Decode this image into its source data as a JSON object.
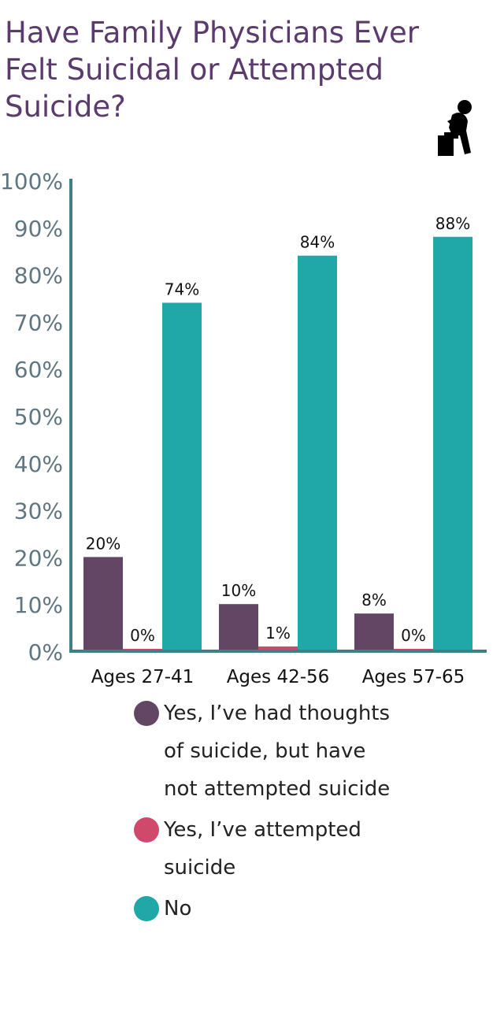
{
  "title": "Have Family Physicians Ever Felt Suicidal or Attempted Suicide?",
  "icon": "person-sitting-head-in-hand-icon",
  "chart_data": {
    "type": "bar",
    "title": "Have Family Physicians Ever Felt Suicidal or Attempted Suicide?",
    "categories": [
      "Ages 27-41",
      "Ages 42-56",
      "Ages 57-65"
    ],
    "series": [
      {
        "name": "Yes, I’ve had thoughts of suicide, but have not attempted suicide",
        "color": "#634663",
        "values": [
          20,
          10,
          8
        ],
        "labels": [
          "20%",
          "10%",
          "8%"
        ]
      },
      {
        "name": "Yes, I’ve attempted suicide",
        "color": "#cf4a6a",
        "values": [
          0,
          1,
          0
        ],
        "labels": [
          "0%",
          "1%",
          "0%"
        ]
      },
      {
        "name": "No",
        "color": "#20a8a8",
        "values": [
          74,
          84,
          88
        ],
        "labels": [
          "74%",
          "84%",
          "88%"
        ]
      }
    ],
    "ylim": [
      0,
      100
    ],
    "yticks": [
      "0%",
      "10%",
      "20%",
      "30%",
      "40%",
      "50%",
      "60%",
      "70%",
      "80%",
      "90%",
      "100%"
    ],
    "xlabel": "",
    "ylabel": "",
    "grid": false,
    "legend_position": "bottom",
    "axis_color": "#3f7f86",
    "tick_label_color": "#5f7680"
  }
}
